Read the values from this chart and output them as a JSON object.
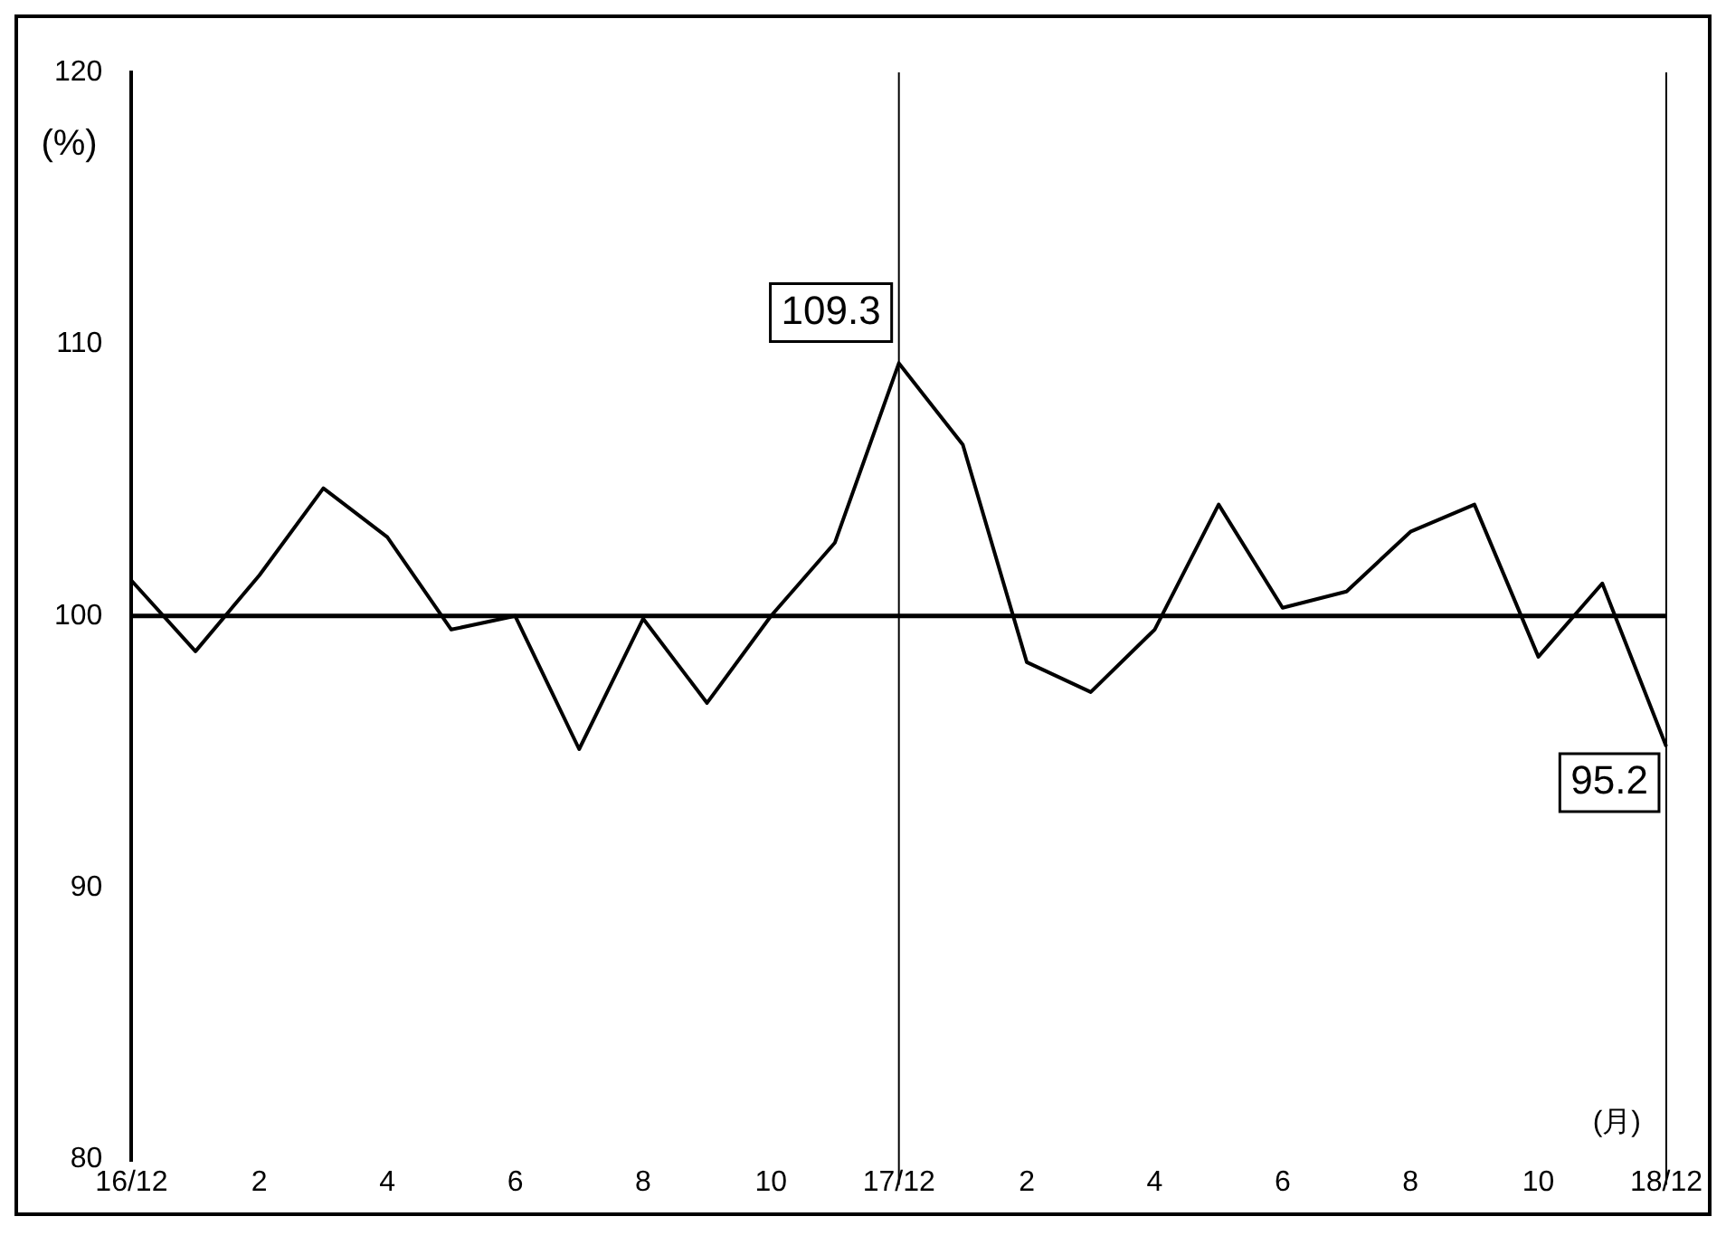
{
  "chart_data": {
    "type": "line",
    "categories": [
      "16/12",
      null,
      "2",
      null,
      "4",
      null,
      "6",
      null,
      "8",
      null,
      "10",
      null,
      "17/12",
      null,
      "2",
      null,
      "4",
      null,
      "6",
      null,
      "8",
      null,
      "10",
      null,
      "18/12"
    ],
    "series": [
      {
        "color": "#000000",
        "values": [
          101.3,
          98.7,
          101.5,
          104.7,
          102.9,
          99.5,
          100.0,
          95.1,
          99.9,
          96.8,
          100.0,
          102.7,
          109.3,
          106.3,
          98.3,
          97.2,
          99.5,
          104.1,
          100.3,
          100.9,
          103.1,
          104.1,
          98.5,
          101.2,
          95.2
        ]
      }
    ],
    "ylim": [
      80,
      120
    ],
    "yticks": [
      80,
      90,
      100,
      110,
      120
    ],
    "ylabel": "(%)",
    "xlabel": "(月)",
    "ref_lines": [
      {
        "axis": "y",
        "value": 100,
        "color": "#000000"
      },
      {
        "axis": "x",
        "value": "17/12",
        "color": "#000000"
      },
      {
        "axis": "x",
        "value": "18/12",
        "color": "#000000"
      }
    ],
    "annotations": [
      {
        "text": "109.3",
        "x": "17/12",
        "y": 109.3
      },
      {
        "text": "95.2",
        "x": "18/12",
        "y": 95.2
      }
    ],
    "grid": false,
    "legend": false,
    "marker": "none",
    "line_style": "solid"
  }
}
